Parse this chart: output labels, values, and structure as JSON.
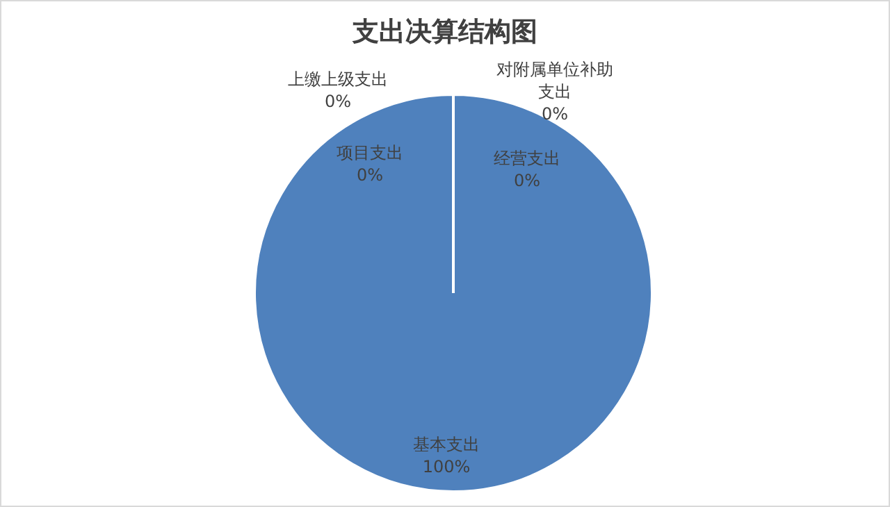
{
  "chart_data": {
    "type": "pie",
    "title": "支出决算结构图",
    "categories": [
      "基本支出",
      "项目支出",
      "上缴上级支出",
      "对附属单位补助支出",
      "经营支出"
    ],
    "values": [
      100,
      0,
      0,
      0,
      0
    ],
    "colors": [
      "#4f81bd",
      "#4f81bd",
      "#4f81bd",
      "#4f81bd",
      "#4f81bd"
    ],
    "value_labels": [
      "100%",
      "0%",
      "0%",
      "0%",
      "0%"
    ],
    "legend": false
  }
}
